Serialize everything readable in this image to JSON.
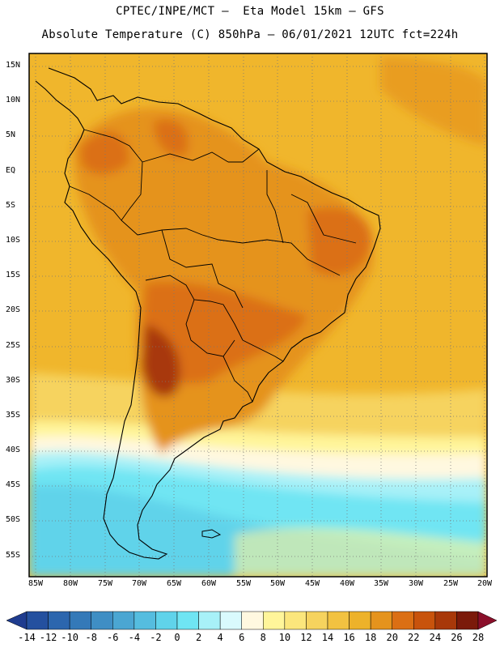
{
  "header": {
    "line1": "CPTEC/INPE/MCT –  Eta Model 15km – GFS",
    "line2": "Absolute Temperature (C) 850hPa – 06/01/2021 12UTC fct=224h"
  },
  "axes": {
    "latitude_labels": [
      "15N",
      "10N",
      "5N",
      "EQ",
      "5S",
      "10S",
      "15S",
      "20S",
      "25S",
      "30S",
      "35S",
      "40S",
      "45S",
      "50S",
      "55S"
    ],
    "longitude_labels": [
      "85W",
      "80W",
      "75W",
      "70W",
      "65W",
      "60W",
      "55W",
      "50W",
      "45W",
      "40W",
      "35W",
      "30W",
      "25W",
      "20W"
    ]
  },
  "colorbar": {
    "labels": [
      "-14",
      "-12",
      "-10",
      "-8",
      "-6",
      "-4",
      "-2",
      "0",
      "2",
      "4",
      "6",
      "8",
      "10",
      "12",
      "14",
      "16",
      "18",
      "20",
      "22",
      "24",
      "26",
      "28"
    ],
    "colors": [
      "#1f3c8f",
      "#24509f",
      "#2c66ae",
      "#3479b8",
      "#3f8ec4",
      "#4ba6d2",
      "#55bddf",
      "#60d3ea",
      "#6fe5f3",
      "#a8f1f8",
      "#d9fafd",
      "#fff8e0",
      "#fff59a",
      "#fbe67c",
      "#f6d35e",
      "#f2c241",
      "#edb22a",
      "#e5931d",
      "#db6f14",
      "#c8530c",
      "#a83809",
      "#7b1a0a",
      "#8a0f2a"
    ]
  }
}
